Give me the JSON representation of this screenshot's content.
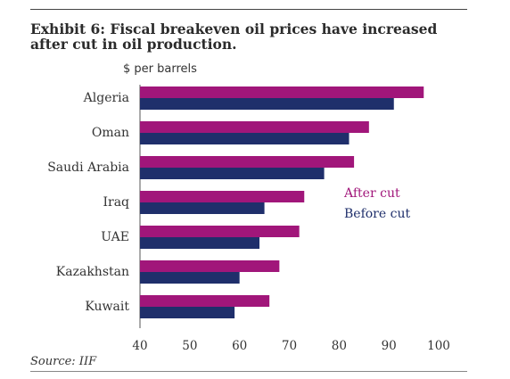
{
  "title": "Exhibit 6: Fiscal breakeven oil prices have increased after cut in oil production.",
  "source": "Source: IIF",
  "chart_data": {
    "type": "bar",
    "orientation": "horizontal",
    "ylabel": "$ per barrels",
    "categories": [
      "Algeria",
      "Oman",
      "Saudi Arabia",
      "Iraq",
      "UAE",
      "Kazakhstan",
      "Kuwait"
    ],
    "series": [
      {
        "name": "After cut",
        "color": "#a1167a",
        "values": [
          97,
          86,
          83,
          73,
          72,
          68,
          66
        ]
      },
      {
        "name": "Before cut",
        "color": "#1f2f6b",
        "values": [
          91,
          82,
          77,
          65,
          64,
          60,
          59
        ]
      }
    ],
    "xlim": [
      40,
      100
    ],
    "xticks": [
      40,
      50,
      60,
      70,
      80,
      90,
      100
    ],
    "legend_position": "right",
    "grid": false
  }
}
